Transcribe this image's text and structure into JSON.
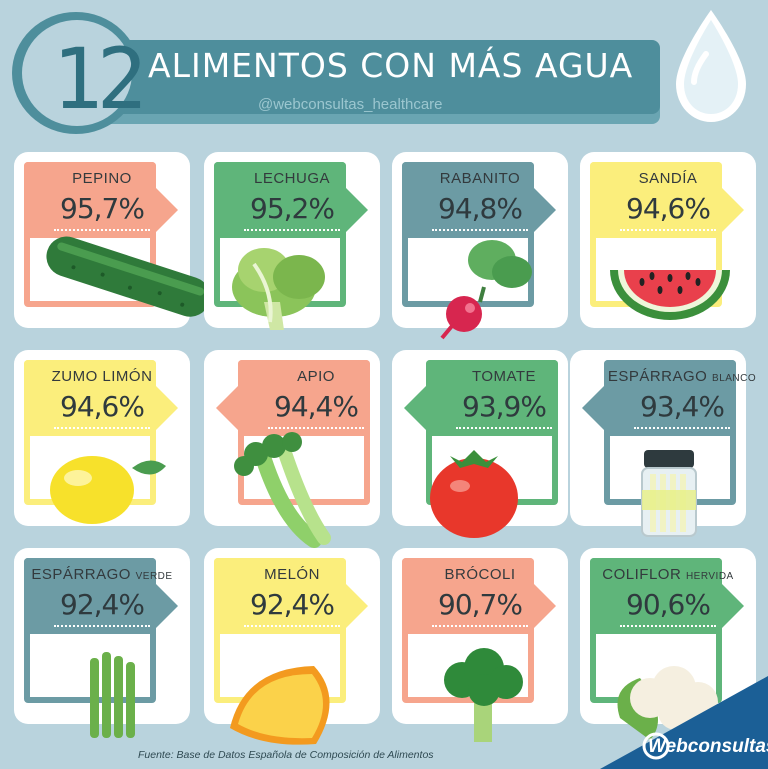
{
  "header": {
    "number": "12",
    "title": "ALIMENTOS CON MÁS AGUA",
    "handle": "@webconsultas_healthcare"
  },
  "cards": [
    {
      "name": "PEPINO",
      "suffix": "",
      "value": "95,7%",
      "color": "#f6a58d",
      "icon": "cucumber-icon"
    },
    {
      "name": "LECHUGA",
      "suffix": "",
      "value": "95,2%",
      "color": "#5fb57a",
      "icon": "lettuce-icon"
    },
    {
      "name": "RABANITO",
      "suffix": "",
      "value": "94,8%",
      "color": "#6c9ba4",
      "icon": "radish-icon"
    },
    {
      "name": "SANDÍA",
      "suffix": "",
      "value": "94,6%",
      "color": "#fbee7c",
      "icon": "watermelon-icon"
    },
    {
      "name": "ZUMO LIMÓN",
      "suffix": "",
      "value": "94,6%",
      "color": "#fbee7c",
      "icon": "lemon-icon"
    },
    {
      "name": "APIO",
      "suffix": "",
      "value": "94,4%",
      "color": "#f6a58d",
      "icon": "celery-icon"
    },
    {
      "name": "TOMATE",
      "suffix": "",
      "value": "93,9%",
      "color": "#5fb57a",
      "icon": "tomato-icon"
    },
    {
      "name": "ESPÁRRAGO",
      "suffix": "BLANCO",
      "value": "93,4%",
      "color": "#6c9ba4",
      "icon": "white-asparagus-jar-icon"
    },
    {
      "name": "ESPÁRRAGO",
      "suffix": "VERDE",
      "value": "92,4%",
      "color": "#6c9ba4",
      "icon": "green-asparagus-icon"
    },
    {
      "name": "MELÓN",
      "suffix": "",
      "value": "92,4%",
      "color": "#fbee7c",
      "icon": "melon-icon"
    },
    {
      "name": "BRÓCOLI",
      "suffix": "",
      "value": "90,7%",
      "color": "#f6a58d",
      "icon": "broccoli-icon"
    },
    {
      "name": "COLIFLOR",
      "suffix": "HERVIDA",
      "value": "90,6%",
      "color": "#5fb57a",
      "icon": "cauliflower-icon"
    }
  ],
  "footer": {
    "source": "Fuente: Base de Datos Española de Composición de Alimentos",
    "brand": "Webconsultas"
  },
  "colors": {
    "background": "#b9d3dd",
    "banner": "#4e8e9c",
    "salmon": "#f6a58d",
    "green": "#5fb57a",
    "teal": "#6c9ba4",
    "yellow": "#fbee7c",
    "brand_blue": "#1b5f96"
  }
}
